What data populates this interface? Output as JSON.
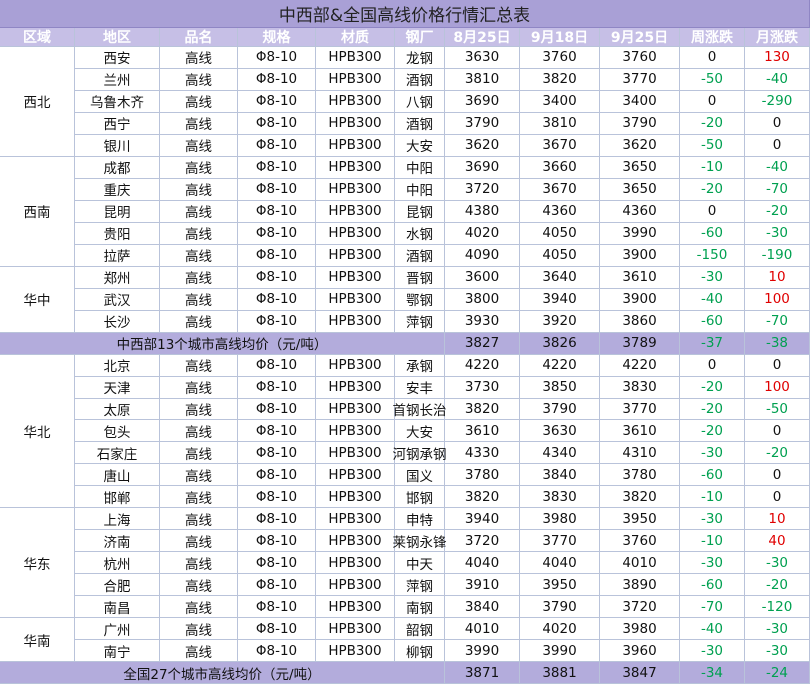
{
  "title": "中西部&全国高线价格行情汇总表",
  "header": [
    "区域",
    "地区",
    "品名",
    "规格",
    "材质",
    "钢厂",
    "8月25日",
    "9月18日",
    "9月25日",
    "周涨跌",
    "月涨跌"
  ],
  "body": [
    {
      "region": "西北",
      "rows": [
        [
          "西安",
          "高线",
          "Φ8-10",
          "HPB300",
          "龙钢",
          3630,
          3760,
          3760,
          0,
          130
        ],
        [
          "兰州",
          "高线",
          "Φ8-10",
          "HPB300",
          "酒钢",
          3810,
          3820,
          3770,
          -50,
          -40
        ],
        [
          "乌鲁木齐",
          "高线",
          "Φ8-10",
          "HPB300",
          "八钢",
          3690,
          3400,
          3400,
          0,
          -290
        ],
        [
          "西宁",
          "高线",
          "Φ8-10",
          "HPB300",
          "酒钢",
          3790,
          3810,
          3790,
          -20,
          0
        ],
        [
          "银川",
          "高线",
          "Φ8-10",
          "HPB300",
          "大安",
          3620,
          3670,
          3620,
          -50,
          0
        ]
      ]
    },
    {
      "region": "西南",
      "rows": [
        [
          "成都",
          "高线",
          "Φ8-10",
          "HPB300",
          "中阳",
          3690,
          3660,
          3650,
          -10,
          -40
        ],
        [
          "重庆",
          "高线",
          "Φ8-10",
          "HPB300",
          "中阳",
          3720,
          3670,
          3650,
          -20,
          -70
        ],
        [
          "昆明",
          "高线",
          "Φ8-10",
          "HPB300",
          "昆钢",
          4380,
          4360,
          4360,
          0,
          -20
        ],
        [
          "贵阳",
          "高线",
          "Φ8-10",
          "HPB300",
          "水钢",
          4020,
          4050,
          3990,
          -60,
          -30
        ],
        [
          "拉萨",
          "高线",
          "Φ8-10",
          "HPB300",
          "酒钢",
          4090,
          4050,
          3900,
          -150,
          -190
        ]
      ]
    },
    {
      "region": "华中",
      "rows": [
        [
          "郑州",
          "高线",
          "Φ8-10",
          "HPB300",
          "晋钢",
          3600,
          3640,
          3610,
          -30,
          10
        ],
        [
          "武汉",
          "高线",
          "Φ8-10",
          "HPB300",
          "鄂钢",
          3800,
          3940,
          3900,
          -40,
          100
        ],
        [
          "长沙",
          "高线",
          "Φ8-10",
          "HPB300",
          "萍钢",
          3930,
          3920,
          3860,
          -60,
          -70
        ]
      ]
    },
    {
      "label": "中西部13个城市高线均价（元/吨）",
      "values": [
        3827,
        3826,
        3789,
        -37,
        -38
      ]
    },
    {
      "region": "华北",
      "rows": [
        [
          "北京",
          "高线",
          "Φ8-10",
          "HPB300",
          "承钢",
          4220,
          4220,
          4220,
          0,
          0
        ],
        [
          "天津",
          "高线",
          "Φ8-10",
          "HPB300",
          "安丰",
          3730,
          3850,
          3830,
          -20,
          100
        ],
        [
          "太原",
          "高线",
          "Φ8-10",
          "HPB300",
          "首钢长治",
          3820,
          3790,
          3770,
          -20,
          -50
        ],
        [
          "包头",
          "高线",
          "Φ8-10",
          "HPB300",
          "大安",
          3610,
          3630,
          3610,
          -20,
          0
        ],
        [
          "石家庄",
          "高线",
          "Φ8-10",
          "HPB300",
          "河钢承钢",
          4330,
          4340,
          4310,
          -30,
          -20
        ],
        [
          "唐山",
          "高线",
          "Φ8-10",
          "HPB300",
          "国义",
          3780,
          3840,
          3780,
          -60,
          0
        ],
        [
          "邯郸",
          "高线",
          "Φ8-10",
          "HPB300",
          "邯钢",
          3820,
          3830,
          3820,
          -10,
          0
        ]
      ]
    },
    {
      "region": "华东",
      "rows": [
        [
          "上海",
          "高线",
          "Φ8-10",
          "HPB300",
          "申特",
          3940,
          3980,
          3950,
          -30,
          10
        ],
        [
          "济南",
          "高线",
          "Φ8-10",
          "HPB300",
          "莱钢永锋",
          3720,
          3770,
          3760,
          -10,
          40
        ],
        [
          "杭州",
          "高线",
          "Φ8-10",
          "HPB300",
          "中天",
          4040,
          4040,
          4010,
          -30,
          -30
        ],
        [
          "合肥",
          "高线",
          "Φ8-10",
          "HPB300",
          "萍钢",
          3910,
          3950,
          3890,
          -60,
          -20
        ],
        [
          "南昌",
          "高线",
          "Φ8-10",
          "HPB300",
          "南钢",
          3840,
          3790,
          3720,
          -70,
          -120
        ]
      ]
    },
    {
      "region": "华南",
      "rows": [
        [
          "广州",
          "高线",
          "Φ8-10",
          "HPB300",
          "韶钢",
          4010,
          4020,
          3980,
          -40,
          -30
        ],
        [
          "南宁",
          "高线",
          "Φ8-10",
          "HPB300",
          "柳钢",
          3990,
          3990,
          3960,
          -30,
          -30
        ]
      ]
    },
    {
      "label": "全国27个城市高线均价（元/吨）",
      "values": [
        3871,
        3881,
        3847,
        -34,
        -24
      ]
    }
  ]
}
